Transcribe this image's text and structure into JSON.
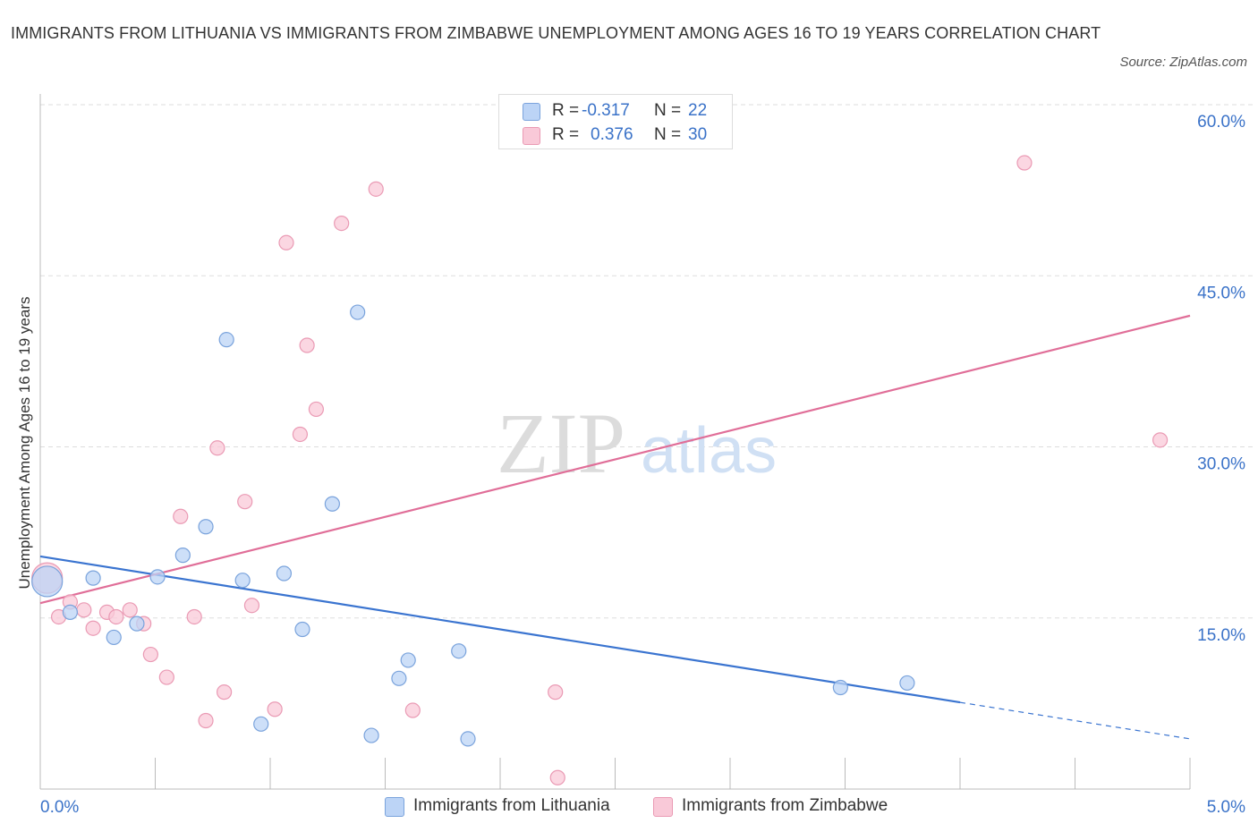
{
  "title": "IMMIGRANTS FROM LITHUANIA VS IMMIGRANTS FROM ZIMBABWE UNEMPLOYMENT AMONG AGES 16 TO 19 YEARS CORRELATION CHART",
  "source": "Source: ZipAtlas.com",
  "watermark": {
    "zip": "ZIP",
    "atlas": "atlas"
  },
  "legend": {
    "lithuania": {
      "r_label": "R =",
      "r_value": "-0.317",
      "n_label": "N =",
      "n_value": "22"
    },
    "zimbabwe": {
      "r_label": "R =",
      "r_value": "0.376",
      "n_label": "N =",
      "n_value": "30"
    }
  },
  "colors": {
    "lithuania_fill": "#bcd4f6",
    "lithuania_stroke": "#7aa3dc",
    "lithuania_line": "#3a74d0",
    "zimbabwe_fill": "#f9c9d8",
    "zimbabwe_stroke": "#ea9ab4",
    "zimbabwe_line": "#e06e98",
    "tick_label": "#3a72c8",
    "grid": "#dddddd"
  },
  "chart_data": {
    "type": "scatter",
    "title": "IMMIGRANTS FROM LITHUANIA VS IMMIGRANTS FROM ZIMBABWE UNEMPLOYMENT AMONG AGES 16 TO 19 YEARS CORRELATION CHART",
    "xlabel": "",
    "ylabel": "Unemployment Among Ages 16 to 19 years",
    "xlim": [
      0,
      5
    ],
    "ylim": [
      0,
      60
    ],
    "x_tick_labels": [
      "0.0%",
      "5.0%"
    ],
    "y_ticks": [
      15,
      30,
      45,
      60
    ],
    "y_tick_labels": [
      "15.0%",
      "30.0%",
      "45.0%",
      "60.0%"
    ],
    "grid": true,
    "legend_position": "top-center",
    "series": [
      {
        "name": "Immigrants from Lithuania",
        "color": "#3a74d0",
        "points": [
          {
            "x": 0.03,
            "y": 18.2,
            "big": true
          },
          {
            "x": 0.13,
            "y": 15.5
          },
          {
            "x": 0.23,
            "y": 18.5
          },
          {
            "x": 0.32,
            "y": 13.3
          },
          {
            "x": 0.42,
            "y": 14.5
          },
          {
            "x": 0.51,
            "y": 18.6
          },
          {
            "x": 0.62,
            "y": 20.5
          },
          {
            "x": 0.72,
            "y": 23.0
          },
          {
            "x": 0.81,
            "y": 39.4
          },
          {
            "x": 0.88,
            "y": 18.3
          },
          {
            "x": 0.96,
            "y": 5.7
          },
          {
            "x": 1.06,
            "y": 18.9
          },
          {
            "x": 1.14,
            "y": 14.0
          },
          {
            "x": 1.27,
            "y": 25.0
          },
          {
            "x": 1.38,
            "y": 41.8
          },
          {
            "x": 1.44,
            "y": 4.7
          },
          {
            "x": 1.56,
            "y": 9.7
          },
          {
            "x": 1.6,
            "y": 11.3
          },
          {
            "x": 1.82,
            "y": 12.1
          },
          {
            "x": 1.86,
            "y": 4.4
          },
          {
            "x": 3.48,
            "y": 8.9
          },
          {
            "x": 3.77,
            "y": 9.3
          }
        ],
        "trend": {
          "x1": 0.0,
          "y1": 20.4,
          "x2": 4.0,
          "y2": 7.6,
          "dash_x2": 5.0,
          "dash_y2": 4.4
        }
      },
      {
        "name": "Immigrants from Zimbabwe",
        "color": "#e06e98",
        "points": [
          {
            "x": 0.03,
            "y": 18.5,
            "big": true
          },
          {
            "x": 0.08,
            "y": 15.1
          },
          {
            "x": 0.13,
            "y": 16.4
          },
          {
            "x": 0.19,
            "y": 15.7
          },
          {
            "x": 0.23,
            "y": 14.1
          },
          {
            "x": 0.29,
            "y": 15.5
          },
          {
            "x": 0.33,
            "y": 15.1
          },
          {
            "x": 0.39,
            "y": 15.7
          },
          {
            "x": 0.45,
            "y": 14.5
          },
          {
            "x": 0.48,
            "y": 11.8
          },
          {
            "x": 0.55,
            "y": 9.8
          },
          {
            "x": 0.61,
            "y": 23.9
          },
          {
            "x": 0.67,
            "y": 15.1
          },
          {
            "x": 0.72,
            "y": 6.0
          },
          {
            "x": 0.77,
            "y": 29.9
          },
          {
            "x": 0.8,
            "y": 8.5
          },
          {
            "x": 0.89,
            "y": 25.2
          },
          {
            "x": 0.92,
            "y": 16.1
          },
          {
            "x": 1.02,
            "y": 7.0
          },
          {
            "x": 1.07,
            "y": 47.9
          },
          {
            "x": 1.13,
            "y": 31.1
          },
          {
            "x": 1.16,
            "y": 38.9
          },
          {
            "x": 1.2,
            "y": 33.3
          },
          {
            "x": 1.31,
            "y": 49.6
          },
          {
            "x": 1.46,
            "y": 52.6
          },
          {
            "x": 1.62,
            "y": 6.9
          },
          {
            "x": 2.24,
            "y": 8.5
          },
          {
            "x": 2.25,
            "y": 1.0
          },
          {
            "x": 4.28,
            "y": 54.9
          },
          {
            "x": 4.87,
            "y": 30.6
          }
        ],
        "trend": {
          "x1": 0.0,
          "y1": 16.3,
          "x2": 5.0,
          "y2": 41.5
        }
      }
    ]
  },
  "bottom_legend": [
    "Immigrants from Lithuania",
    "Immigrants from Zimbabwe"
  ]
}
